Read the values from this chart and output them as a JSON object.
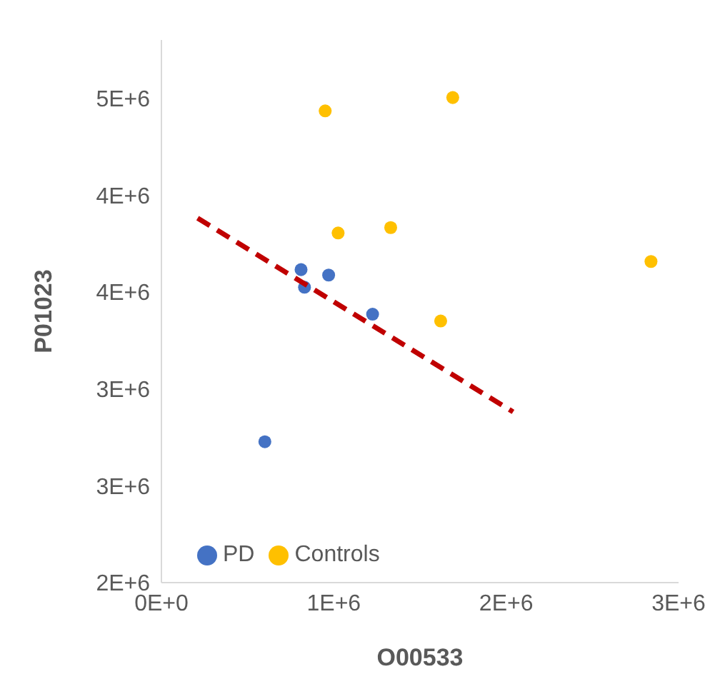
{
  "chart_data": {
    "type": "scatter",
    "xlabel": "O00533",
    "ylabel": "P01023",
    "xlim": [
      0,
      3000000
    ],
    "xticks": [
      {
        "value": 0,
        "label": "0E+0"
      },
      {
        "value": 1000000,
        "label": "1E+6"
      },
      {
        "value": 2000000,
        "label": "2E+6"
      },
      {
        "value": 3000000,
        "label": "3E+6"
      }
    ],
    "ylim": [
      2000000,
      4800000
    ],
    "yticks": [
      {
        "value": 2000000,
        "label": "2E+6"
      },
      {
        "value": 2500000,
        "label": "3E+6"
      },
      {
        "value": 3000000,
        "label": "3E+6"
      },
      {
        "value": 3500000,
        "label": "4E+6"
      },
      {
        "value": 4000000,
        "label": "4E+6"
      },
      {
        "value": 4500000,
        "label": "5E+6"
      }
    ],
    "series": [
      {
        "name": "PD",
        "color": "#4472c4",
        "x": [
          600000,
          810000,
          830000,
          970000,
          1225000
        ],
        "values": [
          2727000,
          3615000,
          3524000,
          3587000,
          3385000
        ]
      },
      {
        "name": "Controls",
        "color": "#ffc000",
        "x": [
          950000,
          1690000,
          1025000,
          1330000,
          2840000,
          1620000
        ],
        "values": [
          4434000,
          4503000,
          3804000,
          3832000,
          3657000,
          3350000
        ]
      },
      {
        "type": "line",
        "color": "#c00000",
        "line_style": "dashed",
        "marker": "none",
        "x": [
          210000,
          2040000
        ],
        "values": [
          3881000,
          2881000
        ]
      }
    ],
    "marker": "circle",
    "grid": false,
    "legend": "bottom left"
  }
}
